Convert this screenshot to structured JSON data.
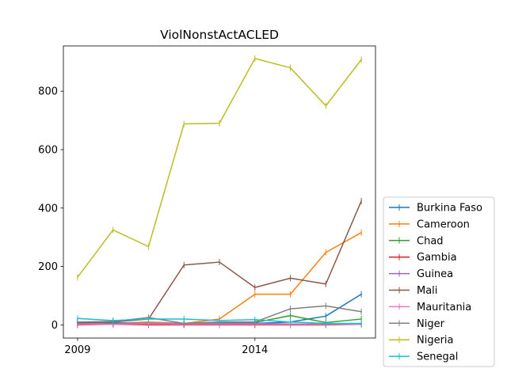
{
  "chart_data": {
    "type": "line",
    "title": "ViolNonstActACLED",
    "xlabel": "",
    "ylabel": "",
    "x": [
      2009,
      2010,
      2011,
      2012,
      2013,
      2014,
      2015,
      2016,
      2017
    ],
    "xlim": [
      2008.6,
      2017.4
    ],
    "ylim": [
      -45,
      955
    ],
    "xticks": [
      2009,
      2014
    ],
    "yticks": [
      0,
      200,
      400,
      600,
      800
    ],
    "grid": false,
    "legend_position": "outside-right-bottom",
    "series": [
      {
        "name": "Burkina Faso",
        "color": "#1f77b4",
        "values": [
          5,
          5,
          3,
          2,
          5,
          5,
          10,
          30,
          105
        ]
      },
      {
        "name": "Cameroon",
        "color": "#ff7f0e",
        "values": [
          3,
          5,
          10,
          5,
          20,
          105,
          105,
          248,
          316
        ]
      },
      {
        "name": "Chad",
        "color": "#2ca02c",
        "values": [
          10,
          5,
          5,
          3,
          5,
          8,
          32,
          8,
          20
        ]
      },
      {
        "name": "Gambia",
        "color": "#d62728",
        "values": [
          0,
          2,
          0,
          0,
          0,
          0,
          0,
          0,
          2
        ]
      },
      {
        "name": "Guinea",
        "color": "#9467bd",
        "values": [
          5,
          8,
          5,
          5,
          5,
          5,
          3,
          3,
          3
        ]
      },
      {
        "name": "Mali",
        "color": "#8c564b",
        "values": [
          8,
          10,
          20,
          205,
          215,
          128,
          160,
          140,
          424
        ]
      },
      {
        "name": "Mauritania",
        "color": "#e377c2",
        "values": [
          2,
          2,
          3,
          2,
          2,
          2,
          2,
          2,
          2
        ]
      },
      {
        "name": "Niger",
        "color": "#7f7f7f",
        "values": [
          10,
          12,
          25,
          5,
          10,
          10,
          55,
          65,
          45
        ]
      },
      {
        "name": "Nigeria",
        "color": "#bcbd22",
        "values": [
          163,
          325,
          268,
          688,
          690,
          912,
          880,
          750,
          908
        ]
      },
      {
        "name": "Senegal",
        "color": "#17becf",
        "values": [
          22,
          15,
          20,
          20,
          15,
          18,
          10,
          5,
          5
        ]
      }
    ]
  }
}
